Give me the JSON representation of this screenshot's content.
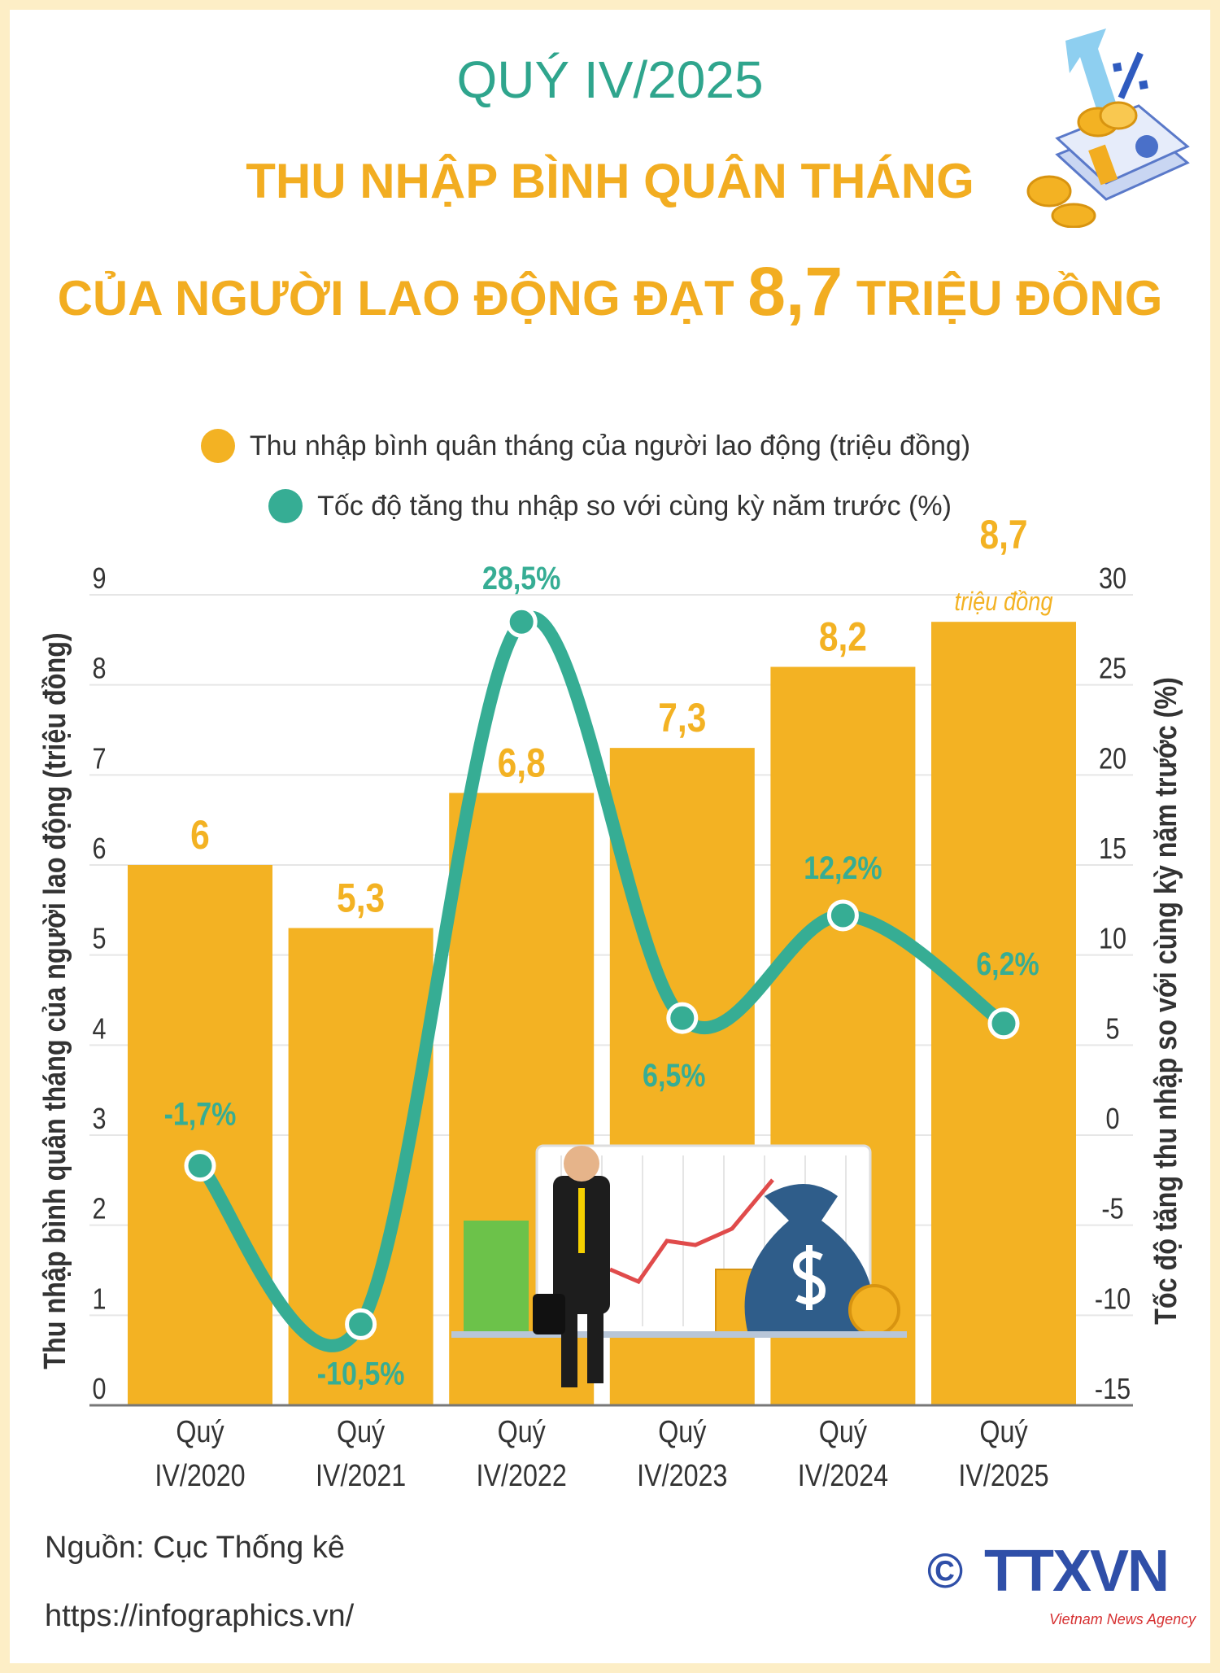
{
  "header": {
    "quarter": "QUÝ IV/2025",
    "title_line1": "THU NHẬP BÌNH QUÂN THÁNG",
    "title_line2_pre": "CỦA NGƯỜI LAO ĐỘNG ĐẠT",
    "title_highlight": "8,7",
    "title_line2_post": "TRIỆU ĐỒNG"
  },
  "colors": {
    "bar": "#f3b223",
    "line": "#36ad94",
    "title_orange": "#f2ad21",
    "title_teal": "#2fa58d",
    "border": "#fdeec6"
  },
  "chart_data": {
    "type": "bar+line",
    "categories": [
      [
        "Quý",
        "IV/2020"
      ],
      [
        "Quý",
        "IV/2021"
      ],
      [
        "Quý",
        "IV/2022"
      ],
      [
        "Quý",
        "IV/2023"
      ],
      [
        "Quý",
        "IV/2024"
      ],
      [
        "Quý",
        "IV/2025"
      ]
    ],
    "series": [
      {
        "name": "Thu nhập bình quân tháng của người lao động (triệu đồng)",
        "type": "bar",
        "axis": "left",
        "values": [
          6,
          5.3,
          6.8,
          7.3,
          8.2,
          8.7
        ],
        "labels": [
          "6",
          "5,3",
          "6,8",
          "7,3",
          "8,2",
          "8,7"
        ]
      },
      {
        "name": "Tốc độ tăng thu nhập so với cùng kỳ năm trước (%)",
        "type": "line",
        "axis": "right",
        "values": [
          -1.7,
          -10.5,
          28.5,
          6.5,
          12.2,
          6.2
        ],
        "labels": [
          "-1,7%",
          "-10,5%",
          "28,5%",
          "6,5%",
          "12,2%",
          "6,2%"
        ]
      }
    ],
    "last_bar_unit": "triệu đồng",
    "ylabel_left": "Thu nhập bình quân tháng của người lao động (triệu đồng)",
    "ylabel_right": "Tốc độ tăng thu nhập so với cùng kỳ năm trước (%)",
    "ylim_left": [
      0,
      9
    ],
    "ylim_right": [
      -15,
      30
    ],
    "yticks_left": [
      "0",
      "1",
      "2",
      "3",
      "4",
      "5",
      "6",
      "7",
      "8",
      "9"
    ],
    "yticks_right": [
      "-15",
      "-10",
      "-5",
      "0",
      "5",
      "10",
      "15",
      "20",
      "25",
      "30"
    ],
    "grid": true,
    "legend_position": "top"
  },
  "footer": {
    "source": "Nguồn: Cục Thống kê",
    "url": "https://infographics.vn/",
    "logo_text": "TTXVN",
    "logo_sub": "Vietnam News Agency",
    "copyright": "©"
  }
}
